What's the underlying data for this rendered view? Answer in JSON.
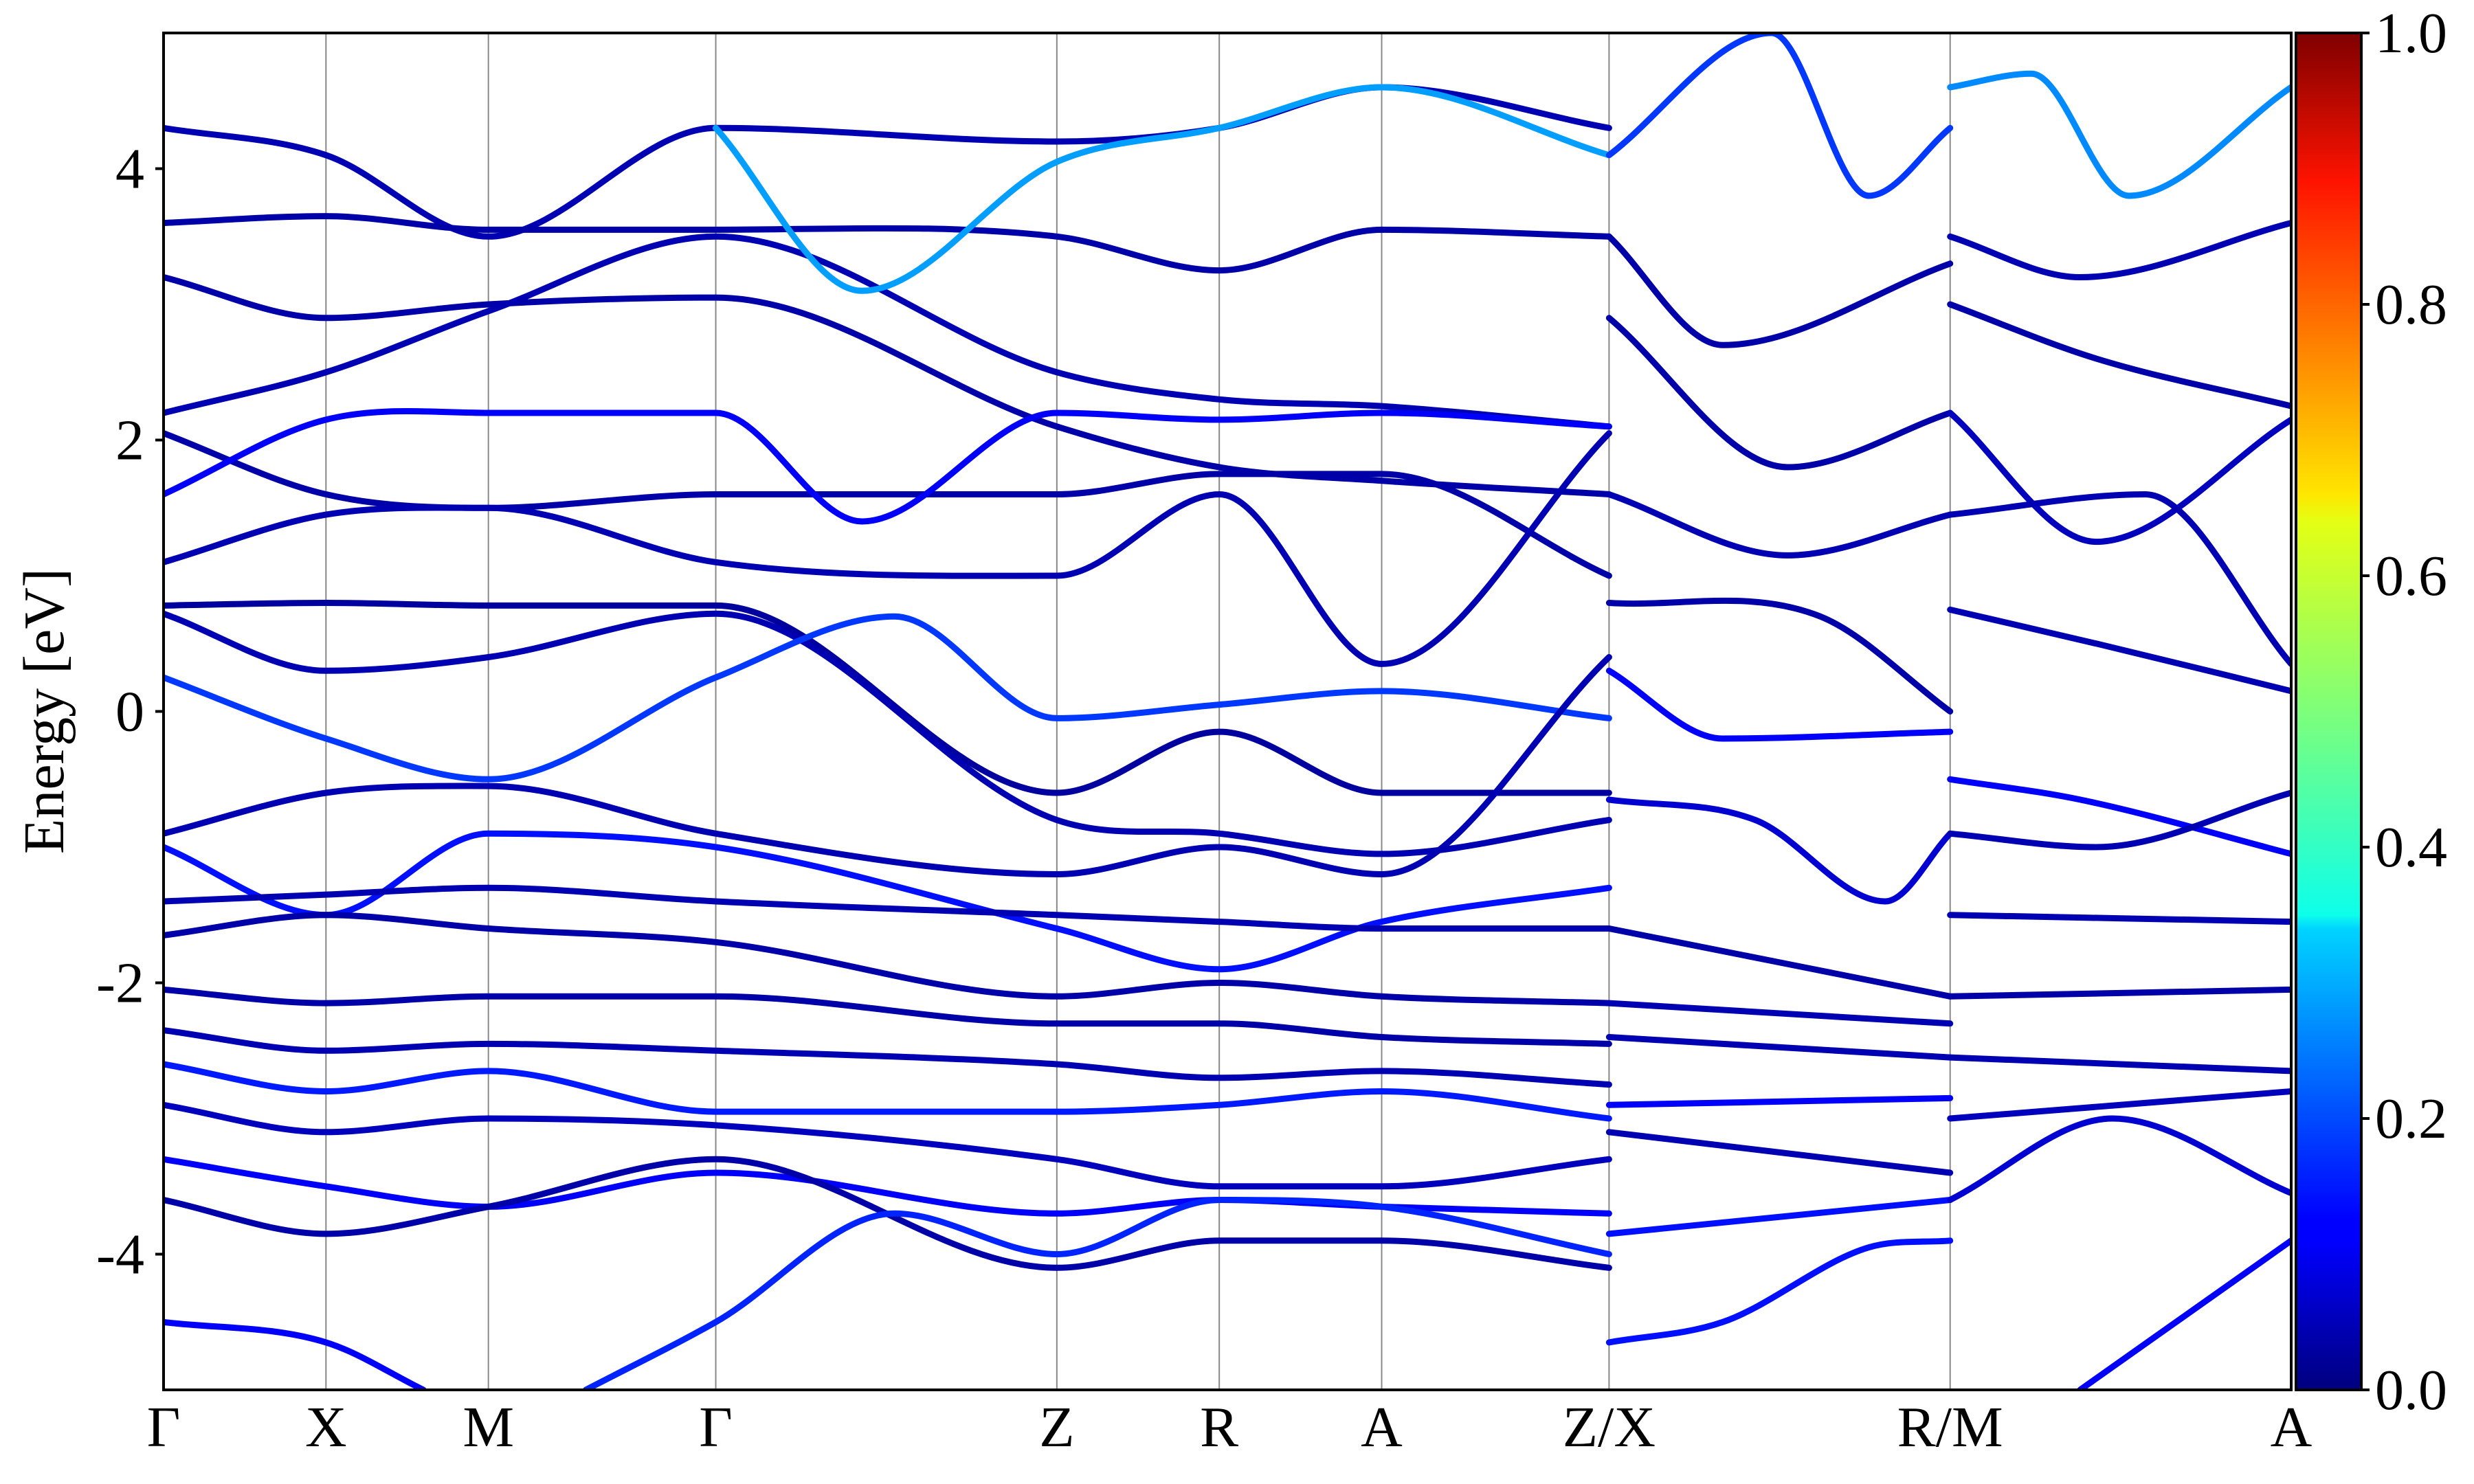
{
  "chart_data": {
    "type": "line",
    "title": "",
    "xlabel": "",
    "ylabel": "Energy [eV]",
    "ylim": [
      -5,
      5
    ],
    "grid": "vertical lines at high-symmetry points",
    "legend": "none",
    "yticks": [
      {
        "value": 4,
        "label": "4"
      },
      {
        "value": 2,
        "label": "2"
      },
      {
        "value": 0,
        "label": "0"
      },
      {
        "value": -2,
        "label": "-2"
      },
      {
        "value": -4,
        "label": "-4"
      }
    ],
    "kpoints": [
      {
        "label": "Γ",
        "pos": 0.0
      },
      {
        "label": "X",
        "pos": 1.0
      },
      {
        "label": "M",
        "pos": 2.0
      },
      {
        "label": "Γ",
        "pos": 3.4
      },
      {
        "label": "Z",
        "pos": 5.5
      },
      {
        "label": "R",
        "pos": 6.5
      },
      {
        "label": "A",
        "pos": 7.5
      },
      {
        "label": "Z/X",
        "pos": 8.9
      },
      {
        "label": "R/M",
        "pos": 11.0
      },
      {
        "label": "A",
        "pos": 13.1
      }
    ],
    "colorbar": {
      "colormap": "jet",
      "range": [
        0.0,
        1.0
      ],
      "ticks": [
        "0.0",
        "0.2",
        "0.4",
        "0.6",
        "0.8",
        "1.0"
      ]
    },
    "series": [
      {
        "x": [
          0,
          1,
          2,
          3.4,
          5.5,
          6.5,
          7.5,
          8.9
        ],
        "y": [
          4.3,
          4.1,
          3.5,
          4.3,
          4.2,
          4.3,
          4.6,
          4.3
        ],
        "weight": 0.05
      },
      {
        "x": [
          0,
          1,
          2,
          3.4,
          5.5,
          6.5,
          7.5,
          8.9
        ],
        "y": [
          3.6,
          3.65,
          3.55,
          3.55,
          3.5,
          3.25,
          3.55,
          3.5
        ],
        "weight": 0.04
      },
      {
        "x": [
          0,
          1,
          2,
          3.4,
          5.5,
          6.5,
          7.5,
          8.9
        ],
        "y": [
          3.2,
          2.9,
          3.0,
          3.05,
          2.1,
          1.8,
          1.7,
          1.6
        ],
        "weight": 0.04
      },
      {
        "x": [
          0,
          1,
          2,
          3.4,
          5.5,
          6.5,
          7.5,
          8.9
        ],
        "y": [
          2.2,
          2.5,
          2.95,
          3.5,
          2.5,
          2.3,
          2.25,
          2.1
        ],
        "weight": 0.05
      },
      {
        "x": [
          0,
          1,
          2,
          3.4,
          5.5,
          6.5,
          7.5,
          8.9
        ],
        "y": [
          2.05,
          1.6,
          1.5,
          1.6,
          1.6,
          1.75,
          1.75,
          1.0
        ],
        "weight": 0.04
      },
      {
        "x": [
          0,
          1,
          2,
          3.4,
          4.3,
          5.5,
          6.5,
          7.5,
          8.9
        ],
        "y": [
          1.6,
          2.15,
          2.2,
          2.2,
          1.4,
          2.2,
          2.15,
          2.2,
          2.1
        ],
        "weight": 0.12
      },
      {
        "x": [
          0,
          1,
          2,
          3.4,
          5.5,
          6.5,
          7.5,
          8.9
        ],
        "y": [
          1.1,
          1.45,
          1.5,
          1.1,
          1.0,
          1.6,
          0.35,
          2.05
        ],
        "weight": 0.05
      },
      {
        "x": [
          0,
          1,
          2,
          3.4,
          5.5,
          6.5,
          7.5,
          8.9
        ],
        "y": [
          0.78,
          0.8,
          0.78,
          0.78,
          -0.6,
          -0.15,
          -0.6,
          -0.6
        ],
        "weight": 0.03
      },
      {
        "x": [
          0,
          1,
          2,
          3.4,
          5.5,
          6.5,
          7.5,
          8.9
        ],
        "y": [
          0.72,
          0.3,
          0.4,
          0.72,
          -0.8,
          -0.9,
          -1.05,
          -0.8
        ],
        "weight": 0.05
      },
      {
        "x": [
          0,
          1,
          2,
          3.4,
          4.5,
          5.5,
          6.5,
          7.5,
          8.9
        ],
        "y": [
          0.25,
          -0.2,
          -0.5,
          0.25,
          0.7,
          -0.05,
          0.05,
          0.15,
          -0.05
        ],
        "weight": 0.18
      },
      {
        "x": [
          0,
          1,
          2,
          3.4,
          5.5,
          6.5,
          7.5,
          8.9
        ],
        "y": [
          -0.9,
          -0.6,
          -0.55,
          -0.9,
          -1.2,
          -1.0,
          -1.2,
          0.4
        ],
        "weight": 0.05
      },
      {
        "x": [
          0,
          1,
          2,
          3.4,
          5.5,
          6.5,
          7.5,
          8.9
        ],
        "y": [
          -1.0,
          -1.5,
          -0.9,
          -1.0,
          -1.6,
          -1.9,
          -1.55,
          -1.3
        ],
        "weight": 0.14
      },
      {
        "x": [
          0,
          1,
          2,
          3.4,
          5.5,
          6.5,
          7.5,
          8.9
        ],
        "y": [
          -1.4,
          -1.35,
          -1.3,
          -1.4,
          -1.5,
          -1.55,
          -1.6,
          -1.6
        ],
        "weight": 0.05
      },
      {
        "x": [
          0,
          1,
          2,
          3.4,
          5.5,
          6.5,
          7.5,
          8.9
        ],
        "y": [
          -1.65,
          -1.5,
          -1.6,
          -1.7,
          -2.1,
          -2.0,
          -2.1,
          -2.15
        ],
        "weight": 0.04
      },
      {
        "x": [
          0,
          1,
          2,
          3.4,
          5.5,
          6.5,
          7.5,
          8.9
        ],
        "y": [
          -2.05,
          -2.15,
          -2.1,
          -2.1,
          -2.3,
          -2.3,
          -2.4,
          -2.45
        ],
        "weight": 0.04
      },
      {
        "x": [
          0,
          1,
          2,
          3.4,
          5.5,
          6.5,
          7.5,
          8.9
        ],
        "y": [
          -2.35,
          -2.5,
          -2.45,
          -2.5,
          -2.6,
          -2.7,
          -2.65,
          -2.75
        ],
        "weight": 0.05
      },
      {
        "x": [
          0,
          1,
          2,
          3.4,
          5.5,
          6.5,
          7.5,
          8.9
        ],
        "y": [
          -2.6,
          -2.8,
          -2.65,
          -2.95,
          -2.95,
          -2.9,
          -2.8,
          -3.0
        ],
        "weight": 0.15
      },
      {
        "x": [
          0,
          1,
          2,
          3.4,
          5.5,
          6.5,
          7.5,
          8.9
        ],
        "y": [
          -2.9,
          -3.1,
          -3.0,
          -3.05,
          -3.3,
          -3.5,
          -3.5,
          -3.3
        ],
        "weight": 0.06
      },
      {
        "x": [
          0,
          1,
          2,
          3.4,
          5.5,
          6.5,
          7.5,
          8.9
        ],
        "y": [
          -3.3,
          -3.5,
          -3.65,
          -3.4,
          -3.7,
          -3.6,
          -3.65,
          -3.7
        ],
        "weight": 0.12
      },
      {
        "x": [
          0,
          1,
          2,
          3.4,
          5.5,
          6.5,
          7.5,
          8.9
        ],
        "y": [
          -3.6,
          -3.85,
          -3.65,
          -3.3,
          -4.1,
          -3.9,
          -3.9,
          -4.1
        ],
        "weight": 0.04
      },
      {
        "x": [
          0,
          1,
          1.6
        ],
        "y": [
          -4.5,
          -4.65,
          -5.0
        ],
        "weight": 0.12
      },
      {
        "x": [
          2.6,
          3.4,
          4.5,
          5.5,
          6.5,
          7.5,
          8.9
        ],
        "y": [
          -5.0,
          -4.5,
          -3.7,
          -4.0,
          -3.6,
          -3.65,
          -4.0
        ],
        "weight": 0.16
      },
      {
        "x": [
          3.4,
          4.3,
          5.5,
          6.5,
          7.5,
          8.9
        ],
        "y": [
          4.3,
          3.1,
          4.05,
          4.3,
          4.6,
          4.1
        ],
        "weight": 0.28
      },
      {
        "x": [
          8.9,
          9.9,
          10.5,
          11.0
        ],
        "y": [
          4.1,
          5.0,
          3.8,
          4.3
        ],
        "weight": 0.18
      },
      {
        "x": [
          8.9,
          9.6,
          11.0
        ],
        "y": [
          3.5,
          2.7,
          3.3
        ],
        "weight": 0.04
      },
      {
        "x": [
          8.9,
          10.0,
          11.0
        ],
        "y": [
          2.9,
          1.8,
          2.2
        ],
        "weight": 0.04
      },
      {
        "x": [
          8.9,
          10.0,
          11.0
        ],
        "y": [
          1.6,
          1.15,
          1.45
        ],
        "weight": 0.05
      },
      {
        "x": [
          8.9,
          10.2,
          11.0
        ],
        "y": [
          0.8,
          0.7,
          0.0
        ],
        "weight": 0.04
      },
      {
        "x": [
          8.9,
          9.6,
          11.0
        ],
        "y": [
          0.3,
          -0.2,
          -0.15
        ],
        "weight": 0.12
      },
      {
        "x": [
          8.9,
          9.8,
          10.6,
          11.0
        ],
        "y": [
          -0.65,
          -0.8,
          -1.4,
          -0.9
        ],
        "weight": 0.08
      },
      {
        "x": [
          8.9,
          11.0
        ],
        "y": [
          -1.6,
          -2.1
        ],
        "weight": 0.04
      },
      {
        "x": [
          8.9,
          11.0
        ],
        "y": [
          -2.15,
          -2.3
        ],
        "weight": 0.05
      },
      {
        "x": [
          8.9,
          11.0
        ],
        "y": [
          -2.4,
          -2.55
        ],
        "weight": 0.05
      },
      {
        "x": [
          8.9,
          11.0
        ],
        "y": [
          -2.9,
          -2.85
        ],
        "weight": 0.12
      },
      {
        "x": [
          8.9,
          11.0
        ],
        "y": [
          -3.1,
          -3.4
        ],
        "weight": 0.05
      },
      {
        "x": [
          8.9,
          11.0
        ],
        "y": [
          -3.85,
          -3.6
        ],
        "weight": 0.14
      },
      {
        "x": [
          8.9,
          9.6,
          10.5,
          11.0
        ],
        "y": [
          -4.65,
          -4.5,
          -3.95,
          -3.9
        ],
        "weight": 0.14
      },
      {
        "x": [
          11.0,
          11.5,
          12.1,
          13.1
        ],
        "y": [
          4.6,
          4.7,
          3.8,
          4.6
        ],
        "weight": 0.26
      },
      {
        "x": [
          11.0,
          11.8,
          13.1
        ],
        "y": [
          3.5,
          3.2,
          3.6
        ],
        "weight": 0.05
      },
      {
        "x": [
          11.0,
          11.9,
          13.1
        ],
        "y": [
          3.0,
          2.6,
          2.25
        ],
        "weight": 0.04
      },
      {
        "x": [
          11.0,
          11.9,
          13.1
        ],
        "y": [
          2.2,
          1.25,
          2.15
        ],
        "weight": 0.06
      },
      {
        "x": [
          11.0,
          12.2,
          13.1
        ],
        "y": [
          1.45,
          1.6,
          0.35
        ],
        "weight": 0.05
      },
      {
        "x": [
          11.0,
          11.9,
          13.1
        ],
        "y": [
          0.75,
          0.5,
          0.15
        ],
        "weight": 0.05
      },
      {
        "x": [
          11.0,
          11.8,
          13.1
        ],
        "y": [
          -0.5,
          -0.65,
          -1.05
        ],
        "weight": 0.12
      },
      {
        "x": [
          11.0,
          11.9,
          13.1
        ],
        "y": [
          -0.9,
          -1.0,
          -0.6
        ],
        "weight": 0.05
      },
      {
        "x": [
          11.0,
          13.1
        ],
        "y": [
          -1.5,
          -1.55
        ],
        "weight": 0.05
      },
      {
        "x": [
          11.0,
          13.1
        ],
        "y": [
          -2.1,
          -2.05
        ],
        "weight": 0.04
      },
      {
        "x": [
          11.0,
          13.1
        ],
        "y": [
          -2.55,
          -2.65
        ],
        "weight": 0.05
      },
      {
        "x": [
          11.0,
          13.1
        ],
        "y": [
          -3.0,
          -2.8
        ],
        "weight": 0.06
      },
      {
        "x": [
          11.0,
          12.0,
          13.1
        ],
        "y": [
          -3.6,
          -3.0,
          -3.55
        ],
        "weight": 0.08
      },
      {
        "x": [
          11.8,
          13.1
        ],
        "y": [
          -5.0,
          -3.9
        ],
        "weight": 0.12
      }
    ]
  }
}
